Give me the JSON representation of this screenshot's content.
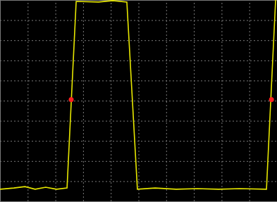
{
  "chart_data": {
    "type": "line",
    "xlim": [
      0,
      10
    ],
    "ylim": [
      0,
      10
    ],
    "xticks": [
      0,
      1,
      2,
      3,
      4,
      5,
      6,
      7,
      8,
      9,
      10
    ],
    "yticks": [
      0,
      1,
      2,
      3,
      4,
      5,
      6,
      7,
      8,
      9,
      10
    ],
    "grid": true,
    "tick_labels": false,
    "series": [
      {
        "type": "line",
        "color": "#e6e600",
        "line_style": "solid",
        "x": [
          0,
          0.5,
          0.9,
          1.27,
          1.65,
          2.04,
          2.42,
          2.75,
          3.56,
          4.07,
          4.58,
          4.96,
          5.6,
          6.36,
          7.12,
          7.89,
          8.65,
          9.62,
          9.95
        ],
        "values": [
          0.6,
          0.66,
          0.73,
          0.6,
          0.7,
          0.6,
          0.66,
          9.93,
          9.9,
          9.97,
          9.9,
          0.6,
          0.66,
          0.6,
          0.63,
          0.6,
          0.63,
          0.6,
          10
        ]
      },
      {
        "type": "scatter",
        "color": "#ff2020",
        "marker": "circle",
        "x": [
          2.57,
          9.8
        ],
        "values": [
          5.05,
          5.05
        ]
      }
    ]
  }
}
